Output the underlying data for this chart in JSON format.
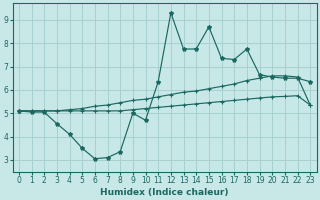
{
  "xlabel": "Humidex (Indice chaleur)",
  "bg_color": "#c8e8e8",
  "grid_color": "#a8d0d0",
  "line_color": "#1a6860",
  "xlim": [
    -0.5,
    23.5
  ],
  "ylim": [
    2.5,
    9.7
  ],
  "xticks": [
    0,
    1,
    2,
    3,
    4,
    5,
    6,
    7,
    8,
    9,
    10,
    11,
    12,
    13,
    14,
    15,
    16,
    17,
    18,
    19,
    20,
    21,
    22,
    23
  ],
  "yticks": [
    3,
    4,
    5,
    6,
    7,
    8,
    9
  ],
  "line1_x": [
    0,
    1,
    2,
    3,
    4,
    5,
    6,
    7,
    8,
    9,
    10,
    11,
    12,
    13,
    14,
    15,
    16,
    17,
    18,
    19,
    20,
    21,
    22,
    23
  ],
  "line1_y": [
    5.1,
    5.05,
    5.05,
    4.55,
    4.1,
    3.5,
    3.05,
    3.1,
    3.35,
    5.0,
    4.7,
    6.35,
    9.3,
    7.75,
    7.75,
    8.7,
    7.35,
    7.3,
    7.75,
    6.65,
    6.55,
    6.5,
    6.5,
    6.35
  ],
  "line2_x": [
    0,
    1,
    2,
    3,
    4,
    5,
    6,
    7,
    8,
    9,
    10,
    11,
    12,
    13,
    14,
    15,
    16,
    17,
    18,
    19,
    20,
    21,
    22,
    23
  ],
  "line2_y": [
    5.1,
    5.1,
    5.1,
    5.1,
    5.15,
    5.2,
    5.3,
    5.35,
    5.45,
    5.55,
    5.6,
    5.7,
    5.8,
    5.9,
    5.95,
    6.05,
    6.15,
    6.25,
    6.4,
    6.5,
    6.6,
    6.6,
    6.55,
    5.35
  ],
  "line3_x": [
    0,
    1,
    2,
    3,
    4,
    5,
    6,
    7,
    8,
    9,
    10,
    11,
    12,
    13,
    14,
    15,
    16,
    17,
    18,
    19,
    20,
    21,
    22,
    23
  ],
  "line3_y": [
    5.1,
    5.1,
    5.1,
    5.1,
    5.1,
    5.1,
    5.1,
    5.1,
    5.1,
    5.15,
    5.2,
    5.25,
    5.3,
    5.35,
    5.4,
    5.45,
    5.5,
    5.55,
    5.6,
    5.65,
    5.7,
    5.72,
    5.75,
    5.35
  ]
}
